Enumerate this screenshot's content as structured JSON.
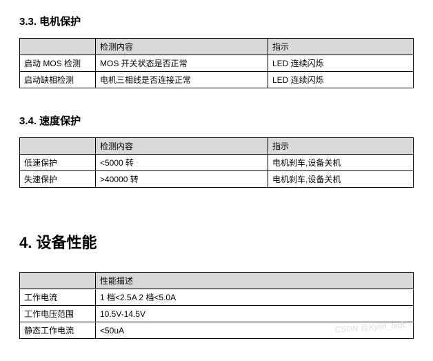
{
  "sections": {
    "motor_protection": {
      "heading": "3.3. 电机保护",
      "headers": {
        "col1": "",
        "col2": "检测内容",
        "col3": "指示"
      },
      "rows": [
        {
          "label": "启动 MOS 检测",
          "content": "MOS 开关状态是否正常",
          "indicator": "LED 连续闪烁"
        },
        {
          "label": "启动缺相检测",
          "content": "电机三相线是否连接正常",
          "indicator": "LED 连续闪烁"
        }
      ]
    },
    "speed_protection": {
      "heading": "3.4. 速度保护",
      "headers": {
        "col1": "",
        "col2": "检测内容",
        "col3": "指示"
      },
      "rows": [
        {
          "label": "低速保护",
          "content": "<5000 转",
          "indicator": "电机刹车,设备关机"
        },
        {
          "label": "失速保护",
          "content": ">40000 转",
          "indicator": "电机刹车,设备关机"
        }
      ]
    },
    "device_performance": {
      "heading": "4. 设备性能",
      "headers": {
        "col1": "",
        "col2": "性能描述"
      },
      "rows": [
        {
          "label": "工作电流",
          "content": "1 档<2.5A     2 档<5.0A"
        },
        {
          "label": "工作电压范围",
          "content": "10.5V-14.5V"
        },
        {
          "label": "静态工作电流",
          "content": "<50uA"
        }
      ]
    }
  },
  "watermark": "CSDN @Kylin_bldc",
  "colors": {
    "header_bg": "#d9d9d9",
    "border": "#000000",
    "text": "#000000",
    "watermark": "#dddddd",
    "background": "#ffffff"
  }
}
